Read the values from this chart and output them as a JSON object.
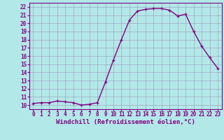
{
  "hours": [
    0,
    1,
    2,
    3,
    4,
    5,
    6,
    7,
    8,
    9,
    10,
    11,
    12,
    13,
    14,
    15,
    16,
    17,
    18,
    19,
    20,
    21,
    22,
    23
  ],
  "values": [
    10.2,
    10.3,
    10.3,
    10.5,
    10.4,
    10.3,
    10.0,
    10.1,
    10.3,
    12.8,
    15.5,
    18.0,
    20.4,
    21.5,
    21.7,
    21.8,
    21.8,
    21.6,
    20.9,
    21.1,
    19.0,
    17.2,
    15.8,
    14.5
  ],
  "line_color": "#800080",
  "marker": "+",
  "bg_color": "#b3e8e8",
  "grid_color": "#9999bb",
  "xlabel": "Windchill (Refroidissement éolien,°C)",
  "ylim": [
    9.5,
    22.5
  ],
  "xlim": [
    -0.5,
    23.5
  ],
  "yticks": [
    10,
    11,
    12,
    13,
    14,
    15,
    16,
    17,
    18,
    19,
    20,
    21,
    22
  ],
  "xticks": [
    0,
    1,
    2,
    3,
    4,
    5,
    6,
    7,
    8,
    9,
    10,
    11,
    12,
    13,
    14,
    15,
    16,
    17,
    18,
    19,
    20,
    21,
    22,
    23
  ],
  "tick_color": "#800080",
  "label_color": "#800080",
  "font_size_tick": 5.5,
  "font_size_label": 6.5,
  "linewidth": 1.0,
  "markersize": 3.5,
  "markeredgewidth": 0.9
}
